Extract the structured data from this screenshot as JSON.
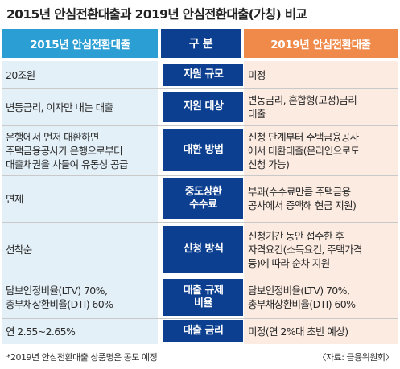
{
  "title": "2015년 안심전환대출과 2019년 안심전환대출(가칭) 비교",
  "headers": {
    "left": "2015년 안심전환대출",
    "middle": "구  분",
    "right": "2019년 안심전환대출"
  },
  "rows": [
    {
      "category": "지원 규모",
      "y2015": "20조원",
      "y2019": "미정"
    },
    {
      "category": "지원 대상",
      "y2015": "변동금리, 이자만 내는 대출",
      "y2019": "변동금리, 혼합형(고정)금리\n대출"
    },
    {
      "category": "대환 방법",
      "y2015": "은행에서 먼저 대환하면\n주택금융공사가 은행으로부터\n대출채권을 사들여 유동성 공급",
      "y2019": "신청 단계부터 주택금융공사\n에서 대환대출(온라인으로도\n신청 가능)"
    },
    {
      "category": "중도상환\n수수료",
      "y2015": "면제",
      "y2019": "부과(수수료만큼 주택금융\n공사에서 증액해 현금 지원)"
    },
    {
      "category": "신청 방식",
      "y2015": "선착순",
      "y2019": "신청기간 동안 접수한  후\n자격요건(소득요건, 주택가격\n등)에 따라 순차 지원"
    },
    {
      "category": "대출 규제\n비율",
      "y2015": "담보인정비율(LTV) 70%,\n총부채상환비율(DTI) 60%",
      "y2019": "담보인정비율(LTV) 70%,\n총부채상환비율(DTI) 60%"
    },
    {
      "category": "대출 금리",
      "y2015": "연 2.55~2.65%",
      "y2019": "미정(연 2%대 초반 예상)"
    }
  ],
  "footnote": "*2019년 안심전환대출 상품명은 공모 예정",
  "source": "〈자료: 금융위원회〉",
  "colors": {
    "left_header": "#2b9ed3",
    "middle": "#0c3f8f",
    "right_header": "#ef8a4a",
    "left_bg": "#e3f0f8",
    "right_bg": "#fcebe1"
  }
}
